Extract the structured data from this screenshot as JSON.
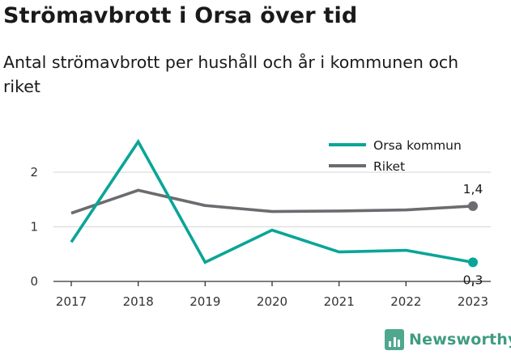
{
  "header": {
    "title": "Strömavbrott i Orsa över tid",
    "subtitle": "Antal strömavbrott per hushåll och år i kommunen och riket"
  },
  "brand": {
    "name": "Newsworthy",
    "icon": "bar-chart-icon"
  },
  "colors": {
    "orsa": "#0aa597",
    "riket": "#6b6b70",
    "grid": "#d6d6d6",
    "brand": "#3f9c80"
  },
  "chart_data": {
    "type": "line",
    "x": [
      "2017",
      "2018",
      "2019",
      "2020",
      "2021",
      "2022",
      "2023"
    ],
    "yticks": [
      "0",
      "1",
      "2"
    ],
    "ylim": [
      0,
      2.6
    ],
    "grid": true,
    "legend": "top-right",
    "series": [
      {
        "name": "Orsa kommun",
        "color": "#0aa597",
        "values": [
          0.72,
          2.56,
          0.35,
          0.94,
          0.54,
          0.57,
          0.35
        ],
        "end_label": "0,3"
      },
      {
        "name": "Riket",
        "color": "#6b6b70",
        "values": [
          1.25,
          1.67,
          1.39,
          1.28,
          1.29,
          1.31,
          1.38
        ],
        "end_label": "1,4"
      }
    ],
    "xlabel": "",
    "ylabel": ""
  }
}
